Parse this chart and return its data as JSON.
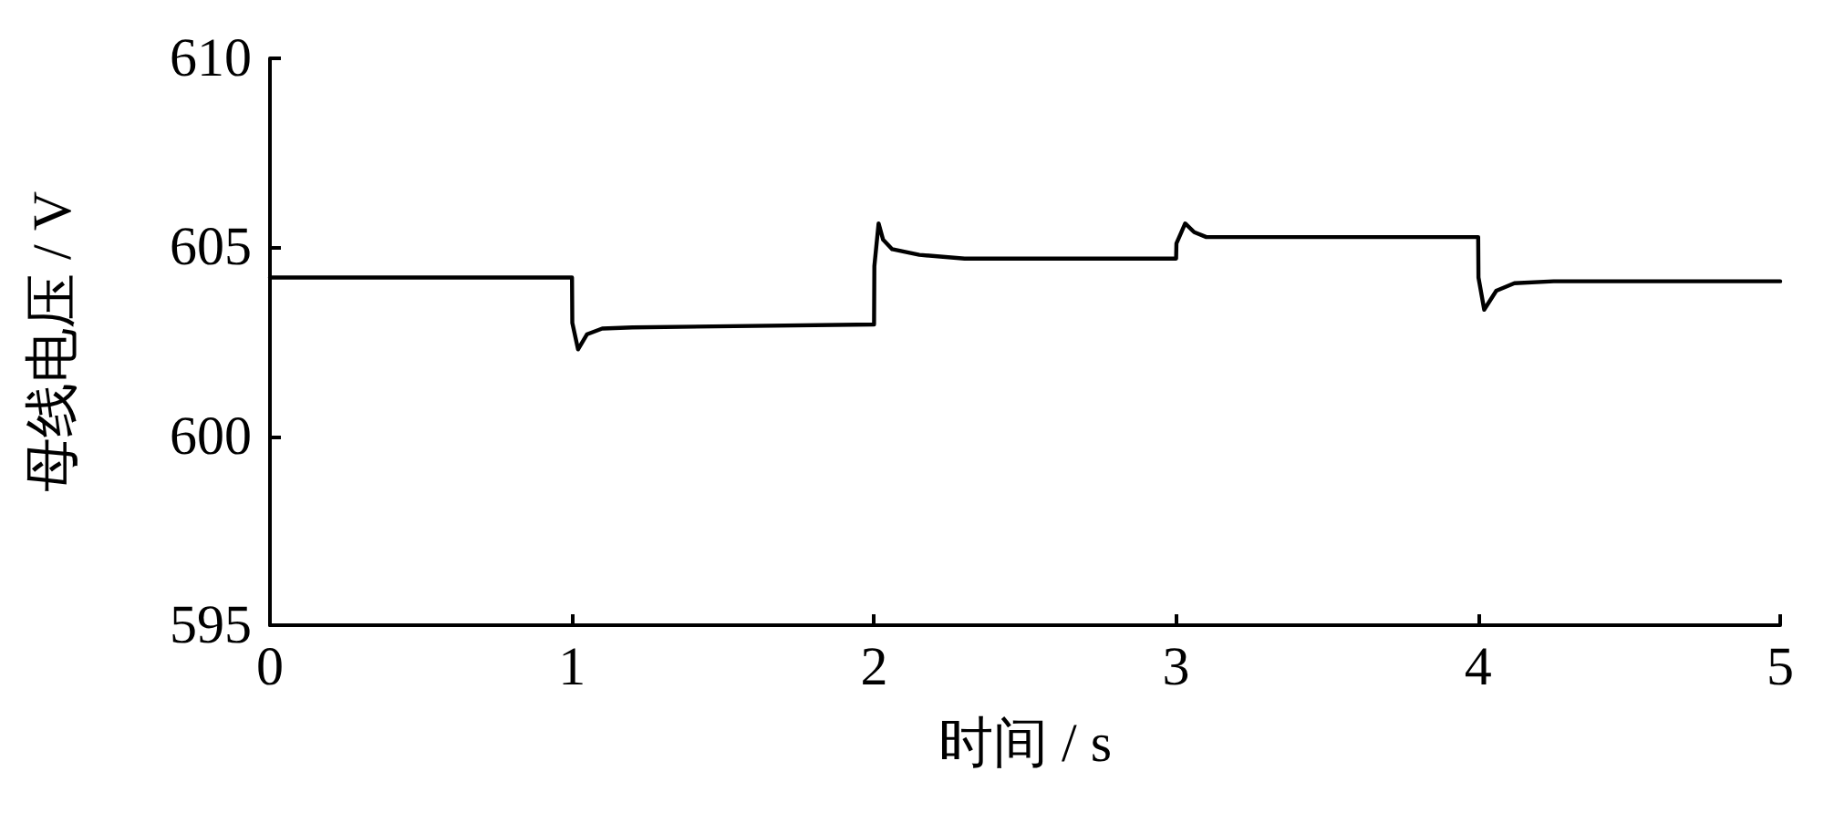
{
  "chart_data": {
    "type": "line",
    "xlabel": "时间 / s",
    "ylabel": "母线电压 / V",
    "xlim": [
      0,
      5
    ],
    "xticks": [
      0,
      1,
      2,
      3,
      4,
      5
    ],
    "ylim": [
      595,
      610
    ],
    "yticks": [
      595,
      600,
      605,
      610
    ],
    "marker": "none",
    "line_style": "solid",
    "series": [
      {
        "color": "#000000",
        "x": [
          0,
          1.0,
          1.001,
          1.02,
          1.05,
          1.1,
          1.2,
          2.0,
          2.001,
          2.015,
          2.03,
          2.06,
          2.15,
          2.3,
          3.0,
          3.001,
          3.03,
          3.06,
          3.1,
          3.2,
          4.0,
          4.001,
          4.02,
          4.06,
          4.12,
          4.25,
          5.0
        ],
        "values": [
          604.2,
          604.2,
          603.0,
          602.3,
          602.7,
          602.85,
          602.88,
          602.96,
          604.5,
          605.63,
          605.2,
          604.95,
          604.8,
          604.7,
          604.7,
          605.1,
          605.63,
          605.4,
          605.27,
          605.27,
          605.27,
          604.2,
          603.35,
          603.85,
          604.05,
          604.1,
          604.1
        ]
      }
    ]
  }
}
